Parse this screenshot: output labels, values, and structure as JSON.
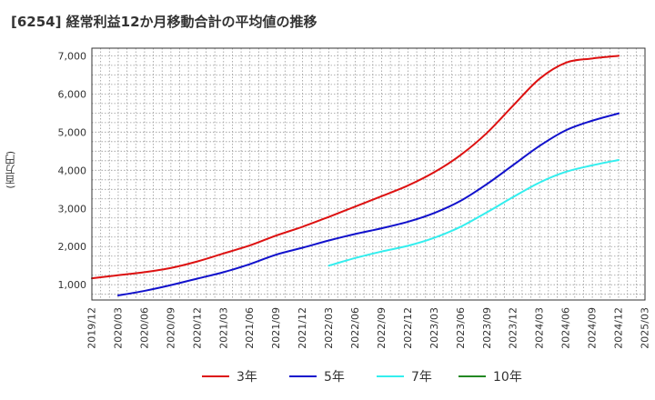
{
  "chart_data": {
    "type": "line",
    "title": "[6254]  経常利益12か月移動合計の平均値の推移",
    "ylabel": "(百万円)",
    "xlabel": "",
    "x_tick_labels": [
      "2019/12",
      "2020/03",
      "2020/06",
      "2020/09",
      "2020/12",
      "2021/03",
      "2021/06",
      "2021/09",
      "2021/12",
      "2022/03",
      "2022/06",
      "2022/09",
      "2022/12",
      "2023/03",
      "2023/06",
      "2023/09",
      "2023/12",
      "2024/03",
      "2024/06",
      "2024/09",
      "2024/12",
      "2025/03"
    ],
    "y_ticks": [
      1000,
      2000,
      3000,
      4000,
      5000,
      6000,
      7000
    ],
    "y_tick_labels": [
      "1,000",
      "2,000",
      "3,000",
      "4,000",
      "5,000",
      "6,000",
      "7,000"
    ],
    "ylim": [
      600,
      7200
    ],
    "xlim": [
      "2019/12",
      "2025/03"
    ],
    "grid": true,
    "legend_position": "bottom",
    "series": [
      {
        "name": "3年",
        "color": "#dd1111",
        "x": [
          "2019/12",
          "2020/03",
          "2020/06",
          "2020/09",
          "2020/12",
          "2021/03",
          "2021/06",
          "2021/09",
          "2021/12",
          "2022/03",
          "2022/06",
          "2022/09",
          "2022/12",
          "2023/03",
          "2023/06",
          "2023/09",
          "2023/12",
          "2024/03",
          "2024/06",
          "2024/09",
          "2024/12"
        ],
        "values": [
          1170,
          1250,
          1330,
          1440,
          1610,
          1820,
          2030,
          2290,
          2520,
          2780,
          3050,
          3320,
          3600,
          3950,
          4400,
          4980,
          5700,
          6400,
          6820,
          6930,
          7000
        ]
      },
      {
        "name": "5年",
        "color": "#1111cc",
        "x": [
          "2020/03",
          "2020/06",
          "2020/09",
          "2020/12",
          "2021/03",
          "2021/06",
          "2021/09",
          "2021/12",
          "2022/03",
          "2022/06",
          "2022/09",
          "2022/12",
          "2023/03",
          "2023/06",
          "2023/09",
          "2023/12",
          "2024/03",
          "2024/06",
          "2024/09",
          "2024/12"
        ],
        "values": [
          720,
          840,
          990,
          1160,
          1330,
          1540,
          1790,
          1970,
          2160,
          2330,
          2480,
          2650,
          2880,
          3200,
          3640,
          4140,
          4640,
          5050,
          5300,
          5490
        ]
      },
      {
        "name": "7年",
        "color": "#33eeee",
        "x": [
          "2022/03",
          "2022/06",
          "2022/09",
          "2022/12",
          "2023/03",
          "2023/06",
          "2023/09",
          "2023/12",
          "2024/03",
          "2024/06",
          "2024/09",
          "2024/12"
        ],
        "values": [
          1500,
          1700,
          1870,
          2020,
          2230,
          2520,
          2900,
          3300,
          3680,
          3960,
          4130,
          4270
        ]
      },
      {
        "name": "10年",
        "color": "#228822",
        "x": [],
        "values": []
      }
    ]
  }
}
